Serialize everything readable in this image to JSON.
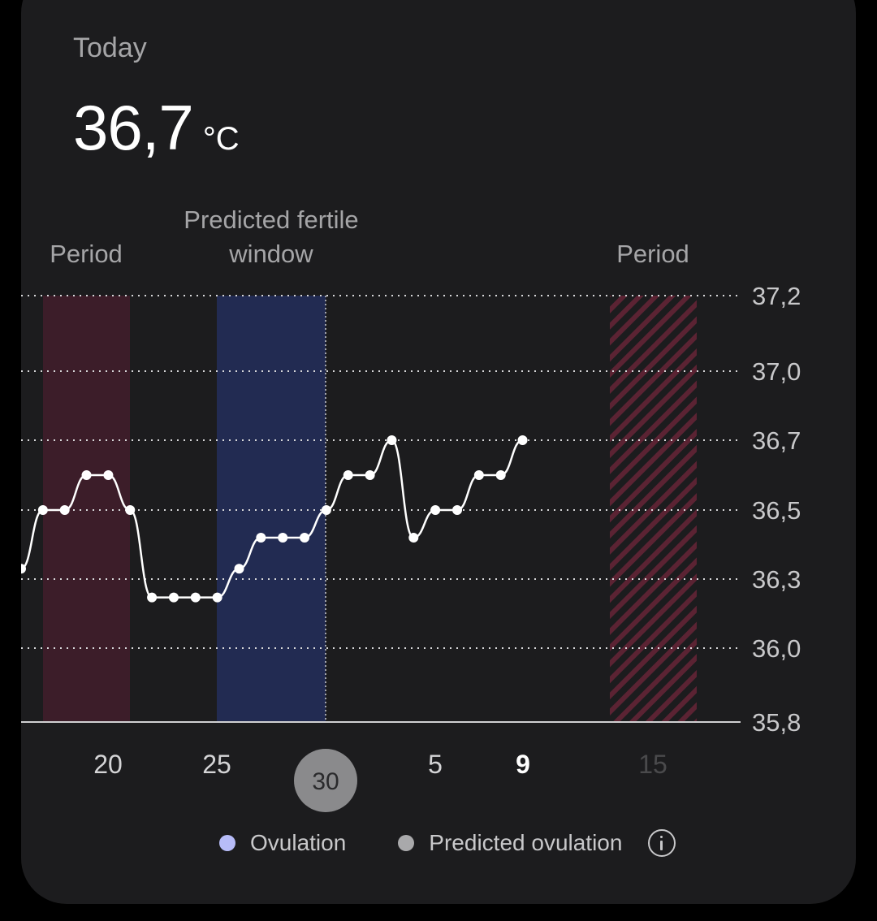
{
  "header": {
    "label": "Today",
    "value": "36,7",
    "unit": "°C"
  },
  "bands": [
    {
      "label": "Period"
    },
    {
      "label": "Predicted fertile window",
      "label_lines": [
        "Predicted fertile",
        "window"
      ]
    },
    {
      "label": "Period"
    }
  ],
  "chart_data": {
    "type": "line",
    "y_ticks": [
      "37,2",
      "37,0",
      "36,7",
      "36,5",
      "36,3",
      "36,0",
      "35,8"
    ],
    "x_labels": [
      {
        "text": "20",
        "style": "normal"
      },
      {
        "text": "25",
        "style": "normal"
      },
      {
        "text": "30",
        "style": "selected"
      },
      {
        "text": "5",
        "style": "normal"
      },
      {
        "text": "9",
        "style": "bold"
      },
      {
        "text": "15",
        "style": "future"
      }
    ],
    "series": [
      {
        "values": [
          36.33,
          36.5,
          36.5,
          36.6,
          36.6,
          36.5,
          36.22,
          36.22,
          36.22,
          36.22,
          36.33,
          36.42,
          36.42,
          36.42,
          36.5,
          36.6,
          36.6,
          36.7,
          36.42,
          36.5,
          36.5,
          36.6,
          36.6,
          36.7
        ]
      }
    ]
  },
  "legend": {
    "ovulation": "Ovulation",
    "predicted": "Predicted ovulation"
  },
  "colors": {
    "card": "#1c1c1e",
    "period": "#3c1d29",
    "fertile": "#222b52",
    "future_period_stripe": "#5b2333",
    "ovulation_dot": "#b7bcf8",
    "predicted_dot": "#a9a9ab",
    "selected_day": "#8a8a8c"
  }
}
